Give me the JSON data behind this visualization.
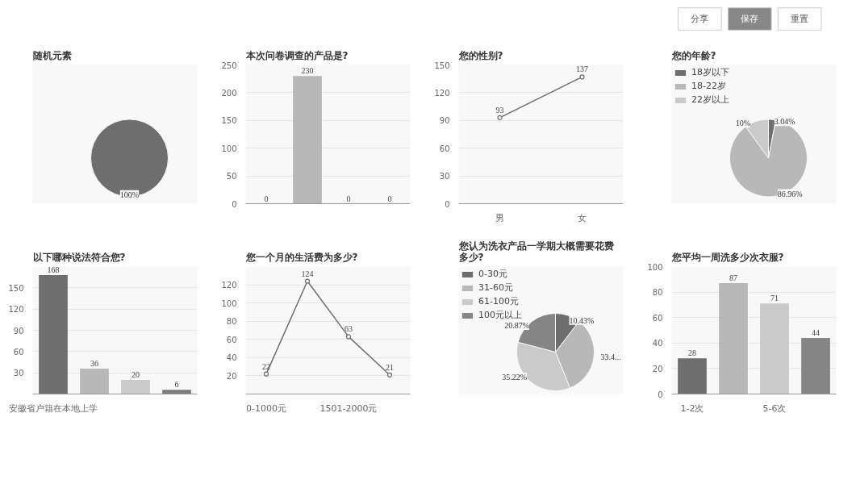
{
  "chart_data": [
    {
      "type": "other",
      "annotations": [
        "分享",
        "保存",
        "重置"
      ]
    },
    {
      "type": "pie",
      "title": "随机元素",
      "categories": [
        null
      ],
      "values": [
        100
      ],
      "colors": [
        "#6e6e6e"
      ],
      "value_labels": [
        "100%"
      ]
    },
    {
      "type": "bar",
      "title": "本次问卷调查的产品是?",
      "categories": [
        null,
        null,
        null,
        null
      ],
      "values": [
        0,
        230,
        0,
        0
      ],
      "colors": [
        "#6e6e6e",
        "#b8b8b8",
        "#cacaca",
        "#858585"
      ],
      "ylim": [
        0,
        250
      ],
      "yticks": [
        0,
        50,
        100,
        150,
        200,
        250
      ],
      "grid": "y",
      "data_labels": true
    },
    {
      "type": "line",
      "title": "您的性别?",
      "categories": [
        "男",
        "女"
      ],
      "values": [
        93,
        137
      ],
      "color": "#6e6e6e",
      "ylim": [
        0,
        150
      ],
      "yticks": [
        0,
        30,
        60,
        90,
        120,
        150
      ],
      "grid": "y",
      "marker": "circle",
      "data_labels": true
    },
    {
      "type": "pie",
      "title": "您的年龄?",
      "categories": [
        "18岁以下",
        "18-22岁",
        "22岁以上"
      ],
      "values": [
        3.04,
        86.96,
        10
      ],
      "colors": [
        "#6e6e6e",
        "#b8b8b8",
        "#cacaca"
      ],
      "value_labels": [
        "3.04%",
        "86.96%",
        "10%"
      ],
      "legend": "top left"
    },
    {
      "type": "bar",
      "title": "以下哪种说法符合您?",
      "categories": [
        "安徽省户籍在本地上学",
        null,
        null,
        null
      ],
      "values": [
        168,
        36,
        20,
        6
      ],
      "colors": [
        "#6e6e6e",
        "#b8b8b8",
        "#cacaca",
        "#7d7d7d"
      ],
      "ylim": [
        0,
        180
      ],
      "yticks": [
        {
          "value": 0,
          "label": null
        },
        30,
        60,
        90,
        120,
        150,
        {
          "value": 180,
          "label": null
        }
      ],
      "grid": "y",
      "data_labels": true
    },
    {
      "type": "line",
      "title": "您一个月的生活费为多少?",
      "categories": [
        "0-1000元",
        null,
        "1501-2000元",
        null
      ],
      "values": [
        22,
        124,
        63,
        21
      ],
      "color": "#6e6e6e",
      "ylim": [
        0,
        140
      ],
      "yticks": [
        {
          "value": 0,
          "label": null
        },
        20,
        40,
        60,
        80,
        100,
        120,
        {
          "value": 140,
          "label": null
        }
      ],
      "grid": "y",
      "marker": "circle",
      "data_labels": true
    },
    {
      "type": "pie",
      "title": "您认为洗衣产品一学期大概需要花费多少?",
      "categories": [
        "0-30元",
        "31-60元",
        "61-100元",
        "100元以上"
      ],
      "values": [
        10.43,
        33.48,
        35.22,
        20.87
      ],
      "colors": [
        "#6e6e6e",
        "#b8b8b8",
        "#cacaca",
        "#858585"
      ],
      "value_labels": [
        "10.43%",
        "33.4...",
        "35.22%",
        "20.87%"
      ],
      "legend": "top left"
    },
    {
      "type": "bar",
      "title": "您平均一周洗多少次衣服?",
      "categories": [
        "1-2次",
        null,
        "5-6次",
        null
      ],
      "values": [
        28,
        87,
        71,
        44
      ],
      "colors": [
        "#6e6e6e",
        "#b8b8b8",
        "#cacaca",
        "#858585"
      ],
      "ylim": [
        0,
        100
      ],
      "yticks": [
        0,
        20,
        40,
        60,
        80,
        100
      ],
      "grid": "y",
      "data_labels": true
    }
  ]
}
